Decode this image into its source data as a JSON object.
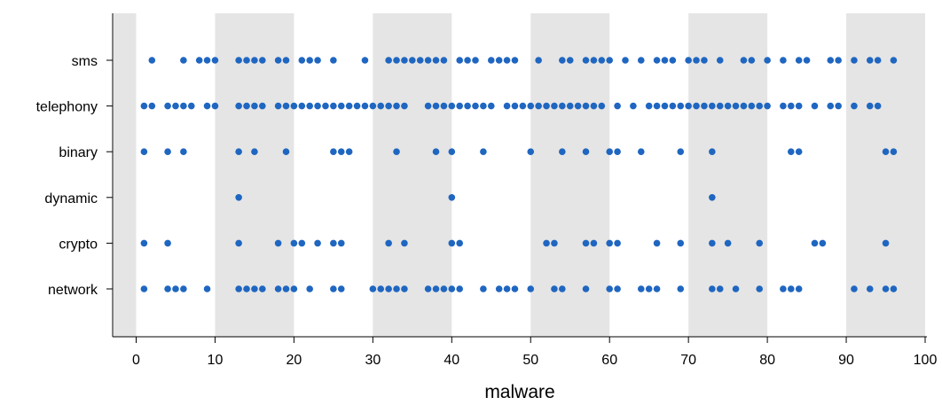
{
  "chart_data": {
    "type": "scatter",
    "xlabel": "malware",
    "ylabel": "",
    "xlim": [
      -3,
      101
    ],
    "x_ticks": [
      0,
      10,
      20,
      30,
      40,
      50,
      60,
      70,
      80,
      90,
      100
    ],
    "x_tick_labels": [
      "0",
      "10",
      "20",
      "30",
      "40",
      "50",
      "60",
      "70",
      "80",
      "90",
      "100"
    ],
    "shaded_bands": [
      [
        -3,
        0
      ],
      [
        10,
        20
      ],
      [
        30,
        40
      ],
      [
        50,
        60
      ],
      [
        70,
        80
      ],
      [
        90,
        100
      ]
    ],
    "band_color": "#e5e5e5",
    "point_color": "#1f66c1",
    "categories": [
      "sms",
      "telephony",
      "binary",
      "dynamic",
      "crypto",
      "network"
    ],
    "series": [
      {
        "category": "sms",
        "x": [
          2,
          6,
          8,
          9,
          10,
          13,
          14,
          15,
          16,
          18,
          19,
          21,
          22,
          23,
          25,
          29,
          32,
          33,
          34,
          35,
          36,
          37,
          38,
          39,
          41,
          42,
          43,
          45,
          46,
          47,
          48,
          51,
          54,
          55,
          57,
          58,
          59,
          60,
          62,
          64,
          66,
          67,
          68,
          70,
          71,
          72,
          74,
          77,
          78,
          80,
          82,
          84,
          85,
          88,
          89,
          91,
          93,
          94,
          96
        ]
      },
      {
        "category": "telephony",
        "x": [
          1,
          2,
          4,
          5,
          6,
          7,
          9,
          10,
          13,
          14,
          15,
          16,
          18,
          19,
          20,
          21,
          22,
          23,
          24,
          25,
          26,
          27,
          28,
          29,
          30,
          31,
          32,
          33,
          34,
          37,
          38,
          39,
          40,
          41,
          42,
          43,
          44,
          45,
          47,
          48,
          49,
          50,
          51,
          52,
          53,
          54,
          55,
          56,
          57,
          58,
          59,
          61,
          63,
          65,
          66,
          67,
          68,
          69,
          70,
          71,
          72,
          73,
          74,
          75,
          76,
          77,
          78,
          79,
          80,
          82,
          83,
          84,
          86,
          88,
          89,
          91,
          93,
          94
        ]
      },
      {
        "category": "binary",
        "x": [
          1,
          4,
          6,
          13,
          15,
          19,
          25,
          26,
          27,
          33,
          38,
          40,
          44,
          50,
          54,
          57,
          60,
          61,
          64,
          69,
          73,
          83,
          84,
          95,
          96
        ]
      },
      {
        "category": "dynamic",
        "x": [
          13,
          40,
          73
        ]
      },
      {
        "category": "crypto",
        "x": [
          1,
          4,
          13,
          18,
          20,
          21,
          23,
          25,
          26,
          32,
          34,
          40,
          41,
          52,
          53,
          57,
          58,
          60,
          61,
          66,
          69,
          73,
          75,
          79,
          86,
          87,
          95
        ]
      },
      {
        "category": "network",
        "x": [
          1,
          4,
          5,
          6,
          9,
          13,
          14,
          15,
          16,
          18,
          19,
          20,
          22,
          25,
          26,
          30,
          31,
          32,
          33,
          34,
          37,
          38,
          39,
          40,
          41,
          44,
          46,
          47,
          48,
          50,
          53,
          54,
          57,
          60,
          61,
          64,
          65,
          66,
          69,
          73,
          74,
          76,
          79,
          82,
          83,
          84,
          91,
          93,
          95,
          96
        ]
      }
    ]
  }
}
